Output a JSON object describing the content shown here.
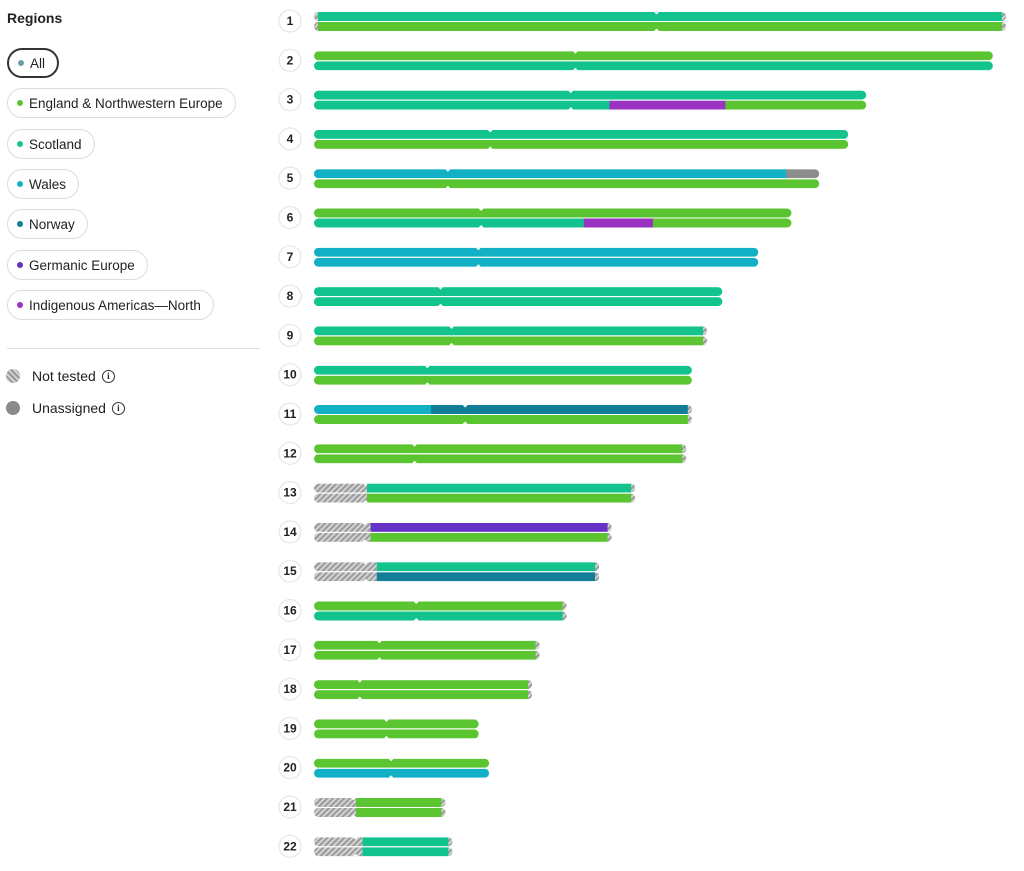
{
  "sidebar": {
    "title": "Regions",
    "filters": [
      {
        "label": "All",
        "color": "#6aa0a8",
        "selected": true
      },
      {
        "label": "England & Northwestern Europe",
        "color": "#5ac531"
      },
      {
        "label": "Scotland",
        "color": "#1ec48a"
      },
      {
        "label": "Wales",
        "color": "#13b2c2"
      },
      {
        "label": "Norway",
        "color": "#127d96"
      },
      {
        "label": "Germanic Europe",
        "color": "#6632c4"
      },
      {
        "label": "Indigenous Americas—North",
        "color": "#9a33c2"
      }
    ],
    "legend": {
      "not_tested": "Not tested",
      "unassigned": "Unassigned",
      "info_glyph": "i"
    }
  },
  "colors": {
    "england": "#5ac531",
    "scotland": "#12c38e",
    "wales": "#12b0c4",
    "norway": "#127d96",
    "germanic": "#6632c4",
    "indigenous": "#9a33c2",
    "unassigned": "#8c8c8c"
  },
  "chromosomes": [
    {
      "label": "1",
      "length": 1.0,
      "centromere": 0.495,
      "top": [
        [
          "scotland",
          1
        ]
      ],
      "bottom": [
        [
          "england",
          1
        ]
      ],
      "ends": "both"
    },
    {
      "label": "2",
      "length": 0.981,
      "centromere": 0.385,
      "top": [
        [
          "england",
          1
        ]
      ],
      "bottom": [
        [
          "scotland",
          1
        ]
      ]
    },
    {
      "label": "3",
      "length": 0.798,
      "centromere": 0.465,
      "top": [
        [
          "scotland",
          1
        ]
      ],
      "bottom": [
        [
          "scotland",
          0.535
        ],
        [
          "indigenous",
          0.21
        ],
        [
          "england",
          0.255
        ]
      ]
    },
    {
      "label": "4",
      "length": 0.772,
      "centromere": 0.33,
      "top": [
        [
          "scotland",
          1
        ]
      ],
      "bottom": [
        [
          "england",
          1
        ]
      ]
    },
    {
      "label": "5",
      "length": 0.73,
      "centromere": 0.265,
      "top": [
        [
          "wales",
          0.935
        ],
        [
          "unassigned",
          0.065
        ]
      ],
      "bottom": [
        [
          "england",
          1
        ]
      ]
    },
    {
      "label": "6",
      "length": 0.69,
      "centromere": 0.35,
      "top": [
        [
          "england",
          1
        ]
      ],
      "bottom": [
        [
          "scotland",
          0.565
        ],
        [
          "indigenous",
          0.145
        ],
        [
          "england",
          0.29
        ]
      ]
    },
    {
      "label": "7",
      "length": 0.642,
      "centromere": 0.37,
      "top": [
        [
          "wales",
          1
        ]
      ],
      "bottom": [
        [
          "wales",
          1
        ]
      ]
    },
    {
      "label": "8",
      "length": 0.59,
      "centromere": 0.31,
      "top": [
        [
          "scotland",
          1
        ]
      ],
      "bottom": [
        [
          "scotland",
          1
        ]
      ]
    },
    {
      "label": "9",
      "length": 0.568,
      "centromere": 0.35,
      "top": [
        [
          "scotland",
          1
        ]
      ],
      "bottom": [
        [
          "england",
          1
        ]
      ],
      "ends": "right"
    },
    {
      "label": "10",
      "length": 0.546,
      "centromere": 0.3,
      "top": [
        [
          "scotland",
          1
        ]
      ],
      "bottom": [
        [
          "england",
          1
        ]
      ]
    },
    {
      "label": "11",
      "length": 0.546,
      "centromere": 0.4,
      "top": [
        [
          "wales",
          0.31
        ],
        [
          "norway",
          0.69
        ]
      ],
      "bottom": [
        [
          "england",
          1
        ]
      ],
      "ends": "right"
    },
    {
      "label": "12",
      "length": 0.538,
      "centromere": 0.27,
      "top": [
        [
          "england",
          1
        ]
      ],
      "bottom": [
        [
          "england",
          1
        ]
      ],
      "ends": "right"
    },
    {
      "label": "13",
      "length": 0.464,
      "centromere": 0.16,
      "top": [
        [
          "scotland",
          1
        ]
      ],
      "bottom": [
        [
          "england",
          1
        ]
      ],
      "hatch_left": 0.165,
      "ends": "right"
    },
    {
      "label": "14",
      "length": 0.43,
      "centromere": 0.17,
      "top": [
        [
          "germanic",
          1
        ]
      ],
      "bottom": [
        [
          "england",
          1
        ]
      ],
      "hatch_left": 0.19,
      "ends": "right"
    },
    {
      "label": "15",
      "length": 0.412,
      "centromere": 0.18,
      "top": [
        [
          "scotland",
          1
        ]
      ],
      "bottom": [
        [
          "norway",
          1
        ]
      ],
      "hatch_left": 0.22,
      "ends": "right"
    },
    {
      "label": "16",
      "length": 0.365,
      "centromere": 0.405,
      "top": [
        [
          "england",
          1
        ]
      ],
      "bottom": [
        [
          "scotland",
          1
        ]
      ],
      "ends": "right"
    },
    {
      "label": "17",
      "length": 0.326,
      "centromere": 0.29,
      "top": [
        [
          "england",
          1
        ]
      ],
      "bottom": [
        [
          "england",
          1
        ]
      ],
      "ends": "right"
    },
    {
      "label": "18",
      "length": 0.315,
      "centromere": 0.21,
      "top": [
        [
          "england",
          1
        ]
      ],
      "bottom": [
        [
          "england",
          1
        ]
      ],
      "ends": "right"
    },
    {
      "label": "19",
      "length": 0.238,
      "centromere": 0.44,
      "top": [
        [
          "england",
          1
        ]
      ],
      "bottom": [
        [
          "england",
          1
        ]
      ]
    },
    {
      "label": "20",
      "length": 0.253,
      "centromere": 0.44,
      "top": [
        [
          "england",
          1
        ]
      ],
      "bottom": [
        [
          "wales",
          1
        ]
      ]
    },
    {
      "label": "21",
      "length": 0.19,
      "centromere": 0.3,
      "top": [
        [
          "england",
          1
        ]
      ],
      "bottom": [
        [
          "england",
          1
        ]
      ],
      "hatch_left": 0.32,
      "ends": "right"
    },
    {
      "label": "22",
      "length": 0.2,
      "centromere": 0.3,
      "top": [
        [
          "scotland",
          1
        ]
      ],
      "bottom": [
        [
          "scotland",
          1
        ]
      ],
      "hatch_left": 0.35,
      "ends": "right"
    }
  ]
}
